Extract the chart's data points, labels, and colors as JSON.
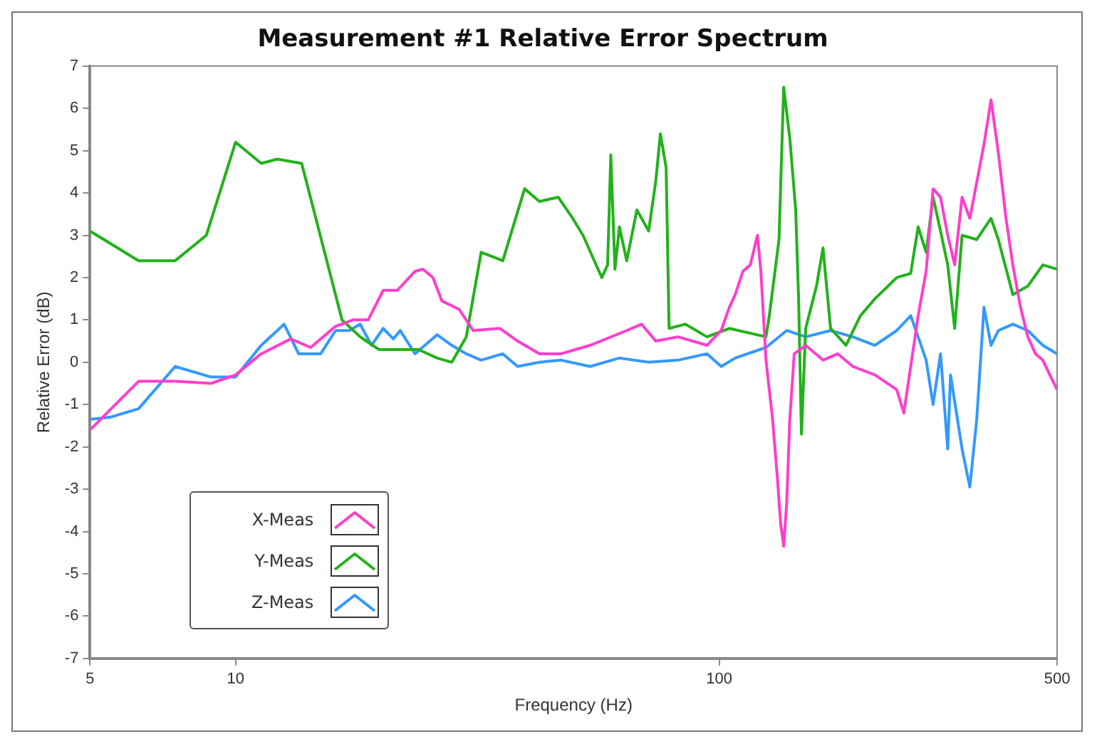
{
  "chart_data": {
    "type": "line",
    "title": "Measurement #1 Relative Error Spectrum",
    "xlabel": "Frequency (Hz)",
    "ylabel": "Relative Error (dB)",
    "log": "x",
    "xlim": [
      5,
      500
    ],
    "xticks": [
      5,
      10,
      100,
      500
    ],
    "ylim": [
      -7,
      7
    ],
    "yticks": [
      -7,
      -6,
      -5,
      -4,
      -3,
      -2,
      -1,
      0,
      1,
      2,
      3,
      4,
      5,
      6,
      7
    ],
    "grid": false,
    "legend": "bottom left",
    "marker": "none",
    "line_style": "solid",
    "series": [
      {
        "name": "X-Meas",
        "color": "#ff3ecc",
        "x": [
          5,
          6.3,
          7.5,
          8.9,
          10,
          11.3,
          13.0,
          14.3,
          16.1,
          17.5,
          18.8,
          20.2,
          21.6,
          23.5,
          24.4,
          25.6,
          26.7,
          29.0,
          31.0,
          35.2,
          38.3,
          42.5,
          47.1,
          54.1,
          64.4,
          69.1,
          74.0,
          82.2,
          94.4,
          101,
          105,
          108,
          112,
          116,
          120,
          122,
          125,
          129,
          132,
          134,
          136,
          138,
          140,
          143,
          151,
          164,
          176,
          189,
          210,
          233,
          241,
          249,
          258,
          268,
          277,
          287,
          297,
          307,
          318,
          330,
          341,
          353,
          365,
          378,
          392,
          405,
          420,
          435,
          451,
          467,
          483,
          500
        ],
        "values": [
          -1.6,
          -0.45,
          -0.45,
          -0.5,
          -0.3,
          0.2,
          0.55,
          0.35,
          0.85,
          1.0,
          1.0,
          1.7,
          1.7,
          2.15,
          2.2,
          2.0,
          1.45,
          1.25,
          0.75,
          0.8,
          0.5,
          0.2,
          0.2,
          0.4,
          0.75,
          0.9,
          0.5,
          0.6,
          0.4,
          0.75,
          1.3,
          1.6,
          2.15,
          2.3,
          3.0,
          2.15,
          0.05,
          -1.35,
          -2.75,
          -3.8,
          -4.35,
          -3.3,
          -1.35,
          0.2,
          0.4,
          0.05,
          0.2,
          -0.1,
          -0.3,
          -0.65,
          -1.2,
          -0.1,
          1.1,
          2.15,
          4.1,
          3.9,
          3.0,
          2.3,
          3.9,
          3.4,
          4.25,
          5.15,
          6.2,
          4.95,
          3.4,
          2.3,
          1.3,
          0.6,
          0.2,
          0.05,
          -0.3,
          -0.65
        ]
      },
      {
        "name": "Y-Meas",
        "color": "#22b21b",
        "x": [
          5,
          6.3,
          7.5,
          8.7,
          10,
          11.3,
          12.2,
          13.7,
          16.6,
          18.1,
          19.8,
          23.9,
          26.1,
          28.0,
          30.0,
          32.2,
          35.7,
          39.6,
          42.5,
          46.5,
          49.8,
          52.3,
          57.2,
          58.8,
          59.7,
          60.9,
          62.2,
          64.4,
          67.6,
          71.5,
          74.0,
          75.6,
          77.7,
          78.8,
          85.1,
          94.4,
          105,
          125,
          127,
          133,
          136,
          140,
          144,
          146,
          148,
          151,
          159,
          164,
          170,
          183,
          196,
          210,
          233,
          249,
          258,
          268,
          277,
          287,
          297,
          307,
          318,
          341,
          365,
          378,
          405,
          435,
          467,
          500
        ],
        "values": [
          3.1,
          2.4,
          2.4,
          3.0,
          5.2,
          4.7,
          4.8,
          4.7,
          1.0,
          0.6,
          0.3,
          0.3,
          0.1,
          0,
          0.6,
          2.6,
          2.4,
          4.1,
          3.8,
          3.9,
          3.4,
          3.0,
          2.0,
          2.3,
          4.9,
          2.2,
          3.2,
          2.4,
          3.6,
          3.1,
          4.3,
          5.4,
          4.6,
          0.8,
          0.9,
          0.6,
          0.8,
          0.6,
          1.1,
          2.9,
          6.5,
          5.3,
          3.6,
          1.5,
          -1.7,
          0.8,
          1.8,
          2.7,
          0.8,
          0.4,
          1.1,
          1.5,
          2.0,
          2.1,
          3.2,
          2.6,
          3.9,
          3.1,
          2.3,
          0.8,
          3.0,
          2.9,
          3.4,
          2.9,
          1.6,
          1.8,
          2.3,
          2.2
        ]
      },
      {
        "name": "Z-Meas",
        "color": "#3399ff",
        "x": [
          5,
          5.5,
          6.3,
          7.5,
          8.9,
          10,
          11.3,
          12.2,
          12.6,
          13.5,
          15.0,
          16.1,
          17.2,
          18.1,
          19.1,
          20.2,
          21.2,
          21.9,
          23.5,
          26.1,
          28.0,
          30.0,
          32.2,
          35.7,
          38.3,
          42.5,
          47.1,
          54.1,
          62.2,
          71.5,
          82.2,
          94.4,
          101,
          108,
          125,
          138,
          151,
          170,
          189,
          210,
          233,
          249,
          258,
          268,
          277,
          287,
          297,
          301,
          318,
          330,
          341,
          353,
          365,
          378,
          405,
          435,
          467,
          500
        ],
        "values": [
          -1.35,
          -1.3,
          -1.1,
          -0.1,
          -0.35,
          -0.35,
          0.4,
          0.75,
          0.9,
          0.2,
          0.2,
          0.75,
          0.75,
          0.9,
          0.4,
          0.8,
          0.55,
          0.75,
          0.2,
          0.65,
          0.4,
          0.2,
          0.05,
          0.2,
          -0.1,
          0,
          0.05,
          -0.1,
          0.1,
          0,
          0.05,
          0.2,
          -0.1,
          0.1,
          0.35,
          0.75,
          0.6,
          0.75,
          0.6,
          0.4,
          0.75,
          1.1,
          0.6,
          0.05,
          -1.0,
          0.2,
          -2.05,
          -0.3,
          -2.05,
          -2.95,
          -1.35,
          1.3,
          0.4,
          0.75,
          0.9,
          0.75,
          0.4,
          0.2
        ]
      }
    ]
  }
}
